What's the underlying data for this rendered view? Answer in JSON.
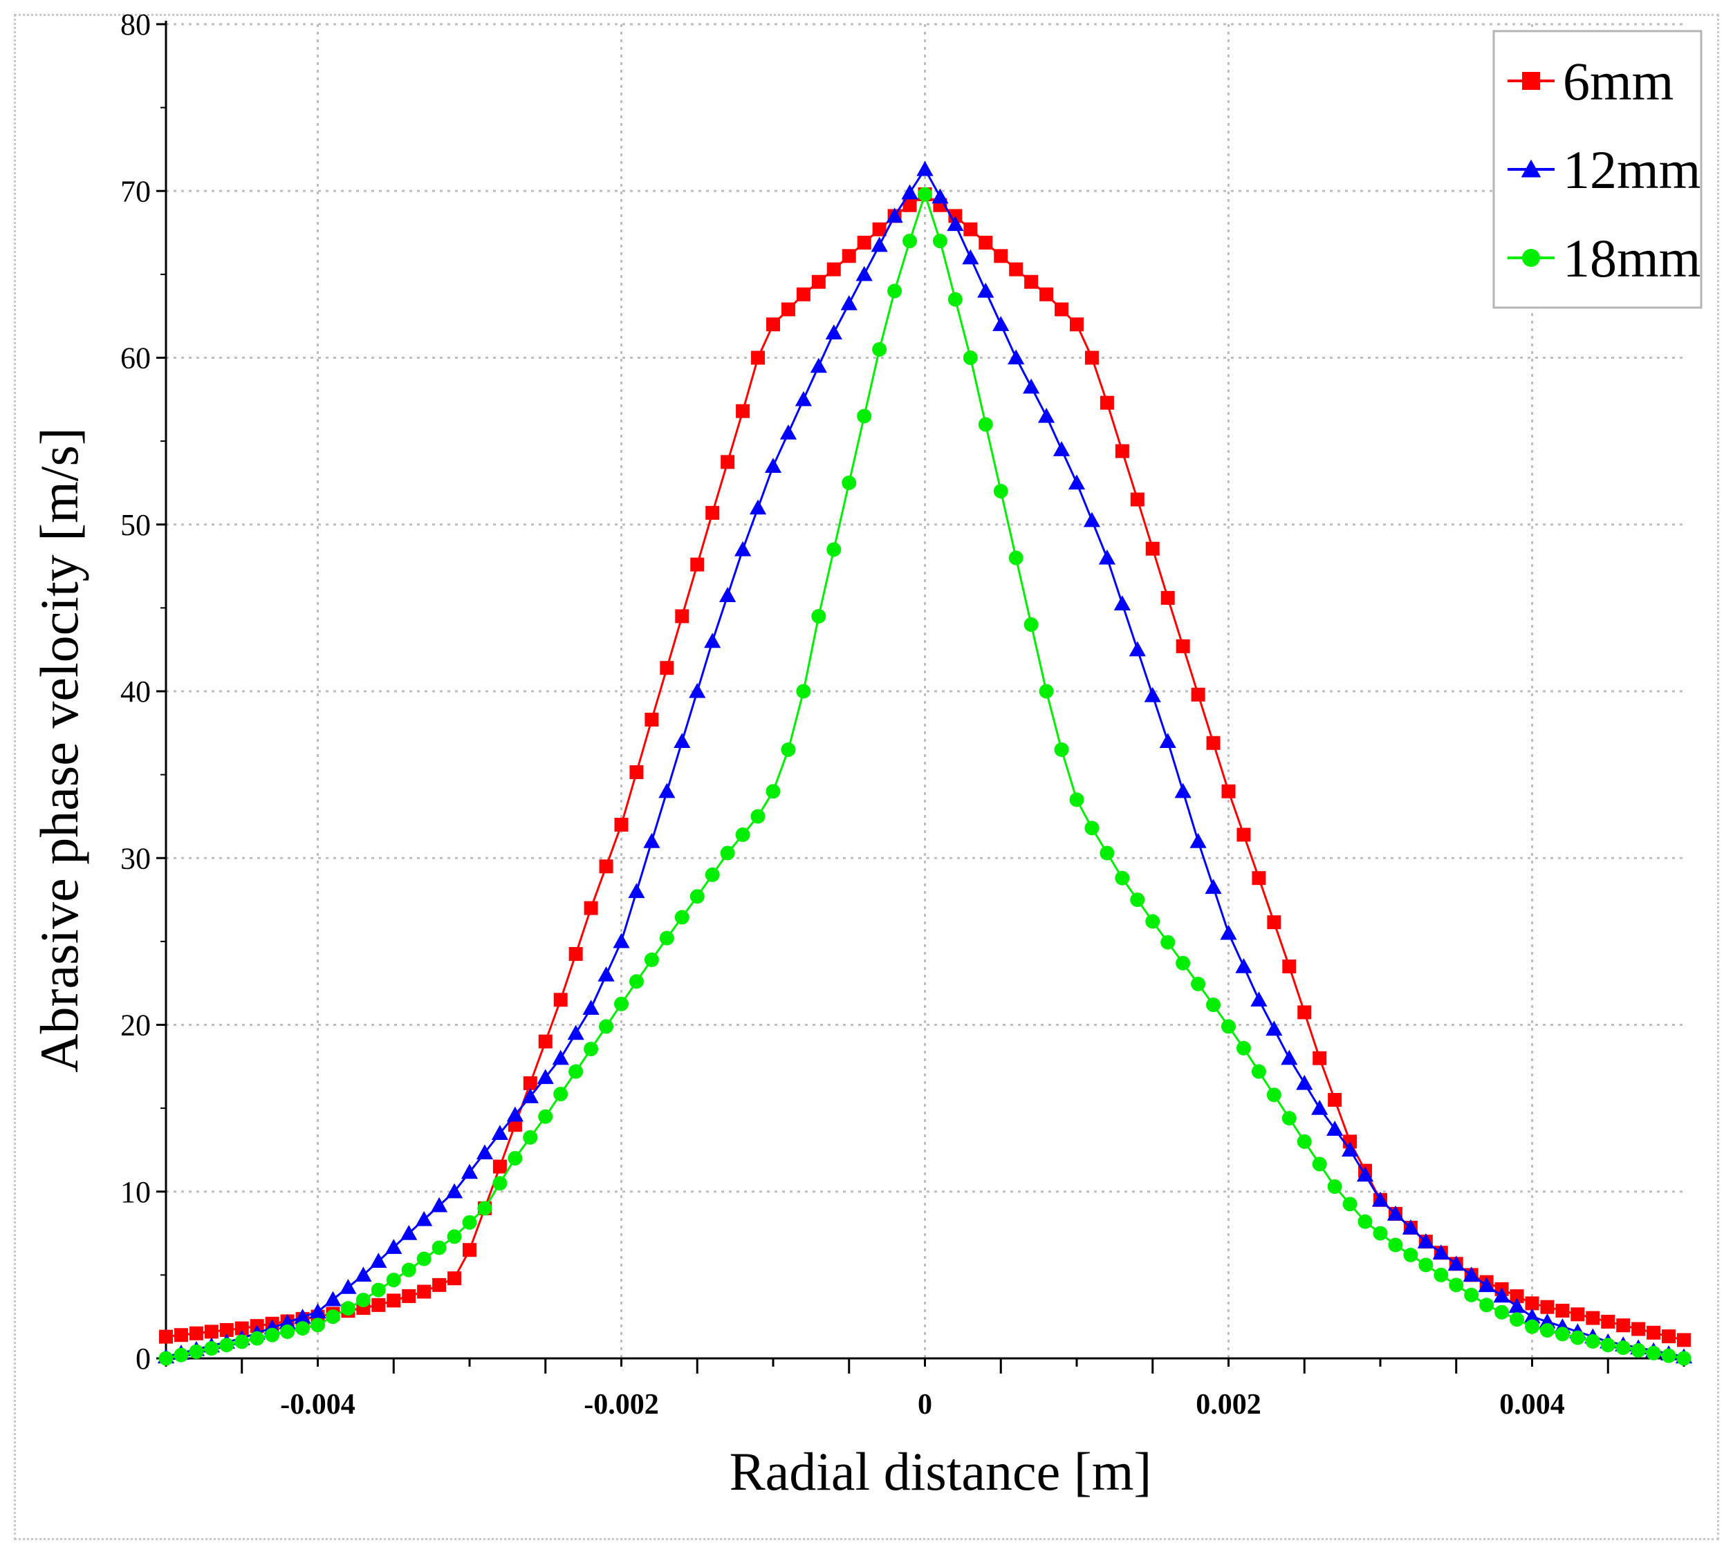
{
  "chart_data": {
    "type": "line",
    "title": "",
    "xlabel": "Radial distance [m]",
    "ylabel": "Abrasive phase velocity [m/s]",
    "xlim": [
      -0.005,
      0.005
    ],
    "ylim": [
      0,
      80
    ],
    "grid": true,
    "legend_position": "top-right",
    "x_ticks": [
      -0.004,
      -0.002,
      0,
      0.002,
      0.004
    ],
    "x_tick_labels": [
      "-0.004",
      "-0.002",
      "0",
      "0.002",
      "0.004"
    ],
    "y_ticks": [
      0,
      10,
      20,
      30,
      40,
      50,
      60,
      70,
      80
    ],
    "y_tick_labels": [
      "0",
      "10",
      "20",
      "30",
      "40",
      "50",
      "60",
      "70",
      "80"
    ],
    "x_step": 0.0001,
    "series": [
      {
        "name": "6mm",
        "color": "#ff0000",
        "marker": "square",
        "key_points": [
          [
            -0.005,
            1.3
          ],
          [
            -0.0045,
            1.8
          ],
          [
            -0.004,
            2.5
          ],
          [
            -0.0036,
            3.2
          ],
          [
            -0.0033,
            4.0
          ],
          [
            -0.0031,
            4.8
          ],
          [
            -0.003,
            6.5
          ],
          [
            -0.0029,
            9.0
          ],
          [
            -0.0028,
            11.5
          ],
          [
            -0.0026,
            16.5
          ],
          [
            -0.0024,
            21.5
          ],
          [
            -0.0022,
            27.0
          ],
          [
            -0.002,
            32.0
          ],
          [
            -0.0018,
            38.3
          ],
          [
            -0.0016,
            44.5
          ],
          [
            -0.0014,
            50.7
          ],
          [
            -0.0012,
            56.8
          ],
          [
            -0.0011,
            60.0
          ],
          [
            -0.001,
            62.0
          ],
          [
            -0.0008,
            63.8
          ],
          [
            -0.0006,
            65.3
          ],
          [
            -0.0004,
            66.9
          ],
          [
            -0.0002,
            68.5
          ],
          [
            0.0,
            69.8
          ],
          [
            0.0002,
            68.5
          ],
          [
            0.0004,
            66.9
          ],
          [
            0.0006,
            65.3
          ],
          [
            0.0008,
            63.8
          ],
          [
            0.001,
            62.0
          ],
          [
            0.0011,
            60.0
          ],
          [
            0.0012,
            57.3
          ],
          [
            0.0014,
            51.5
          ],
          [
            0.0016,
            45.6
          ],
          [
            0.0018,
            39.8
          ],
          [
            0.002,
            34.0
          ],
          [
            0.0022,
            28.8
          ],
          [
            0.0024,
            23.5
          ],
          [
            0.0026,
            18.0
          ],
          [
            0.0028,
            13.0
          ],
          [
            0.003,
            9.5
          ],
          [
            0.0033,
            7.0
          ],
          [
            0.0036,
            5.0
          ],
          [
            0.004,
            3.3
          ],
          [
            0.0045,
            2.2
          ],
          [
            0.005,
            1.1
          ]
        ]
      },
      {
        "name": "12mm",
        "color": "#0000ff",
        "marker": "triangle",
        "key_points": [
          [
            -0.005,
            0.1
          ],
          [
            -0.0045,
            1.2
          ],
          [
            -0.004,
            2.8
          ],
          [
            -0.0037,
            5.0
          ],
          [
            -0.0034,
            7.5
          ],
          [
            -0.0031,
            10.0
          ],
          [
            -0.0028,
            13.5
          ],
          [
            -0.0026,
            15.7
          ],
          [
            -0.0024,
            18.0
          ],
          [
            -0.0022,
            21.0
          ],
          [
            -0.002,
            25.0
          ],
          [
            -0.0018,
            31.0
          ],
          [
            -0.0016,
            37.0
          ],
          [
            -0.0014,
            43.0
          ],
          [
            -0.0012,
            48.5
          ],
          [
            -0.001,
            53.5
          ],
          [
            -0.0008,
            57.5
          ],
          [
            -0.0006,
            61.5
          ],
          [
            -0.0004,
            65.0
          ],
          [
            -0.0002,
            68.5
          ],
          [
            0.0,
            71.3
          ],
          [
            0.0002,
            68.0
          ],
          [
            0.0004,
            64.0
          ],
          [
            0.0006,
            60.0
          ],
          [
            0.0008,
            56.5
          ],
          [
            0.001,
            52.5
          ],
          [
            0.0012,
            48.0
          ],
          [
            0.0014,
            42.5
          ],
          [
            0.0016,
            37.0
          ],
          [
            0.0018,
            31.0
          ],
          [
            0.002,
            25.5
          ],
          [
            0.0022,
            21.5
          ],
          [
            0.0024,
            18.0
          ],
          [
            0.0026,
            15.0
          ],
          [
            0.0028,
            12.5
          ],
          [
            0.003,
            9.5
          ],
          [
            0.0033,
            7.0
          ],
          [
            0.0036,
            5.0
          ],
          [
            0.004,
            2.5
          ],
          [
            0.0045,
            1.0
          ],
          [
            0.005,
            0.1
          ]
        ]
      },
      {
        "name": "18mm",
        "color": "#00ee00",
        "marker": "circle",
        "key_points": [
          [
            -0.005,
            0.0
          ],
          [
            -0.0045,
            1.0
          ],
          [
            -0.004,
            2.0
          ],
          [
            -0.0037,
            3.5
          ],
          [
            -0.0034,
            5.3
          ],
          [
            -0.0031,
            7.3
          ],
          [
            -0.0029,
            9.0
          ],
          [
            -0.0027,
            12.0
          ],
          [
            -0.0025,
            14.5
          ],
          [
            -0.0023,
            17.2
          ],
          [
            -0.0021,
            19.9
          ],
          [
            -0.0019,
            22.6
          ],
          [
            -0.0017,
            25.2
          ],
          [
            -0.0015,
            27.7
          ],
          [
            -0.0013,
            30.3
          ],
          [
            -0.0011,
            32.5
          ],
          [
            -0.001,
            34.0
          ],
          [
            -0.0009,
            36.5
          ],
          [
            -0.0008,
            40.0
          ],
          [
            -0.0007,
            44.5
          ],
          [
            -0.0006,
            48.5
          ],
          [
            -0.0005,
            52.5
          ],
          [
            -0.0004,
            56.5
          ],
          [
            -0.0003,
            60.5
          ],
          [
            -0.0002,
            64.0
          ],
          [
            -0.0001,
            67.0
          ],
          [
            0.0,
            69.8
          ],
          [
            0.0001,
            67.0
          ],
          [
            0.0002,
            63.5
          ],
          [
            0.0003,
            60.0
          ],
          [
            0.0004,
            56.0
          ],
          [
            0.0005,
            52.0
          ],
          [
            0.0006,
            48.0
          ],
          [
            0.0007,
            44.0
          ],
          [
            0.0008,
            40.0
          ],
          [
            0.0009,
            36.5
          ],
          [
            0.001,
            33.5
          ],
          [
            0.0011,
            31.8
          ],
          [
            0.0013,
            28.8
          ],
          [
            0.0015,
            26.2
          ],
          [
            0.0017,
            23.7
          ],
          [
            0.0019,
            21.2
          ],
          [
            0.0021,
            18.6
          ],
          [
            0.0023,
            15.8
          ],
          [
            0.0025,
            13.0
          ],
          [
            0.0027,
            10.3
          ],
          [
            0.0029,
            8.2
          ],
          [
            0.0031,
            6.8
          ],
          [
            0.0034,
            5.0
          ],
          [
            0.0037,
            3.2
          ],
          [
            0.004,
            1.9
          ],
          [
            0.0045,
            0.8
          ],
          [
            0.005,
            0.0
          ]
        ]
      }
    ]
  }
}
